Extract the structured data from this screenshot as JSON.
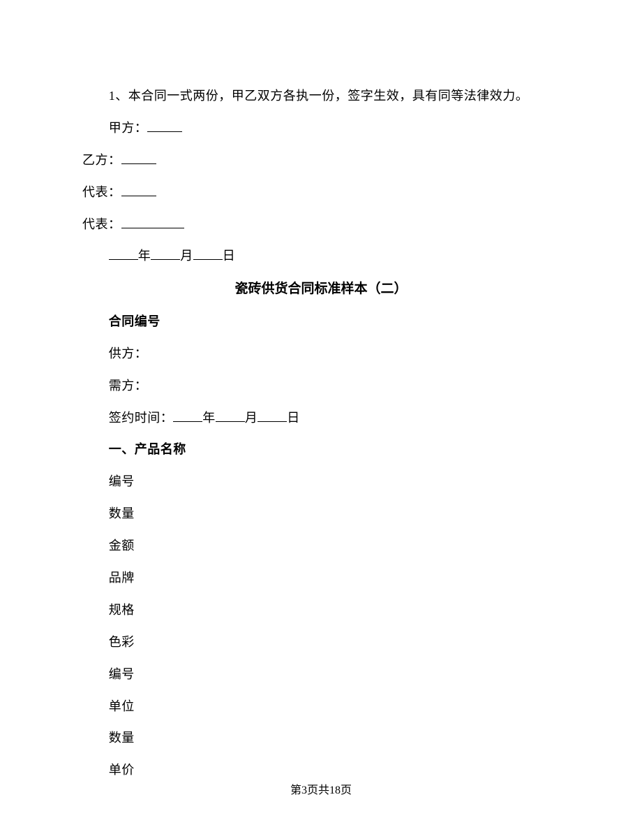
{
  "clause1": "1、本合同一式两份，甲乙双方各执一份，签字生效，具有同等法律效力。",
  "party_a_label": "甲方：",
  "party_b_label": "乙方：",
  "rep_label": "代表：",
  "year_char": "年",
  "month_char": "月",
  "day_char": "日",
  "title2": "瓷砖供货合同标准样本（二）",
  "contract_no_label": "合同编号",
  "supplier_label": "供方：",
  "buyer_label": "需方：",
  "sign_time_label": "签约时间：",
  "section1_title": "一、产品名称",
  "fields": {
    "f1": "编号",
    "f2": "数量",
    "f3": "金额",
    "f4": "品牌",
    "f5": "规格",
    "f6": "色彩",
    "f7": "编号",
    "f8": "单位",
    "f9": "数量",
    "f10": "单价"
  },
  "footer": "第3页共18页"
}
